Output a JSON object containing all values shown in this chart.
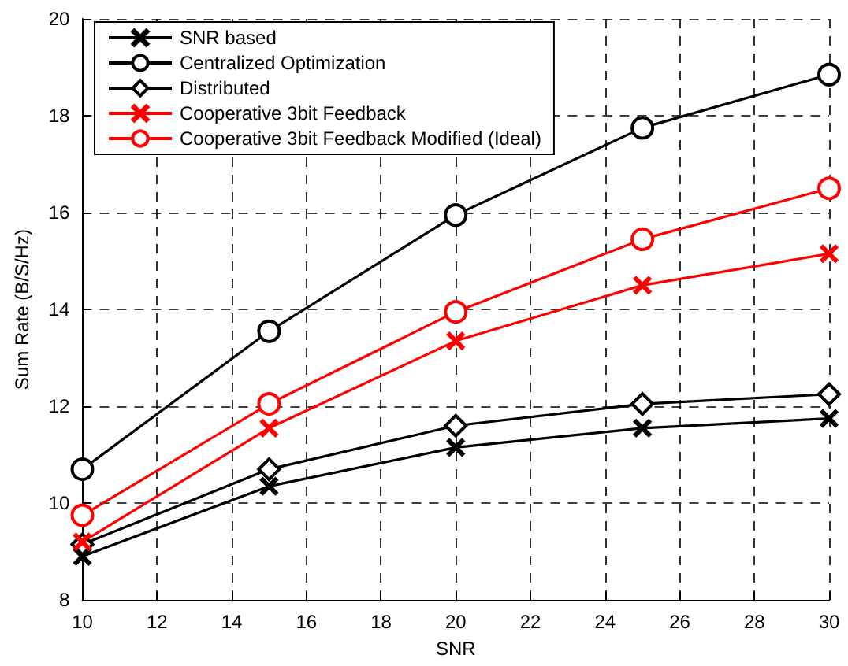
{
  "chart_data": {
    "type": "line",
    "xlabel": "SNR",
    "ylabel": "Sum Rate (B/S/Hz)",
    "x": [
      10,
      15,
      20,
      25,
      30
    ],
    "xlim": [
      10,
      30
    ],
    "xticks": [
      10,
      12,
      14,
      16,
      18,
      20,
      22,
      24,
      26,
      28,
      30
    ],
    "ylim": [
      8,
      20
    ],
    "yticks": [
      8,
      10,
      12,
      14,
      16,
      18,
      20
    ],
    "grid": true,
    "legend": "top left",
    "line_style": "solid",
    "series": [
      {
        "name": "SNR based",
        "color": "#000000",
        "marker": "cross",
        "values": [
          8.9,
          10.35,
          11.15,
          11.55,
          11.75
        ]
      },
      {
        "name": "Centralized Optimization",
        "color": "#000000",
        "marker": "circle",
        "values": [
          10.7,
          13.55,
          15.95,
          17.75,
          18.85
        ]
      },
      {
        "name": "Distributed",
        "color": "#000000",
        "marker": "diamond",
        "values": [
          9.15,
          10.7,
          11.6,
          12.05,
          12.25
        ]
      },
      {
        "name": "Cooperative 3bit Feedback",
        "color": "#ff0000",
        "marker": "cross",
        "values": [
          9.2,
          11.55,
          13.35,
          14.5,
          15.15
        ]
      },
      {
        "name": "Cooperative 3bit Feedback Modified (Ideal)",
        "color": "#ff0000",
        "marker": "circle",
        "values": [
          9.75,
          12.05,
          13.95,
          15.45,
          16.5
        ]
      }
    ]
  }
}
